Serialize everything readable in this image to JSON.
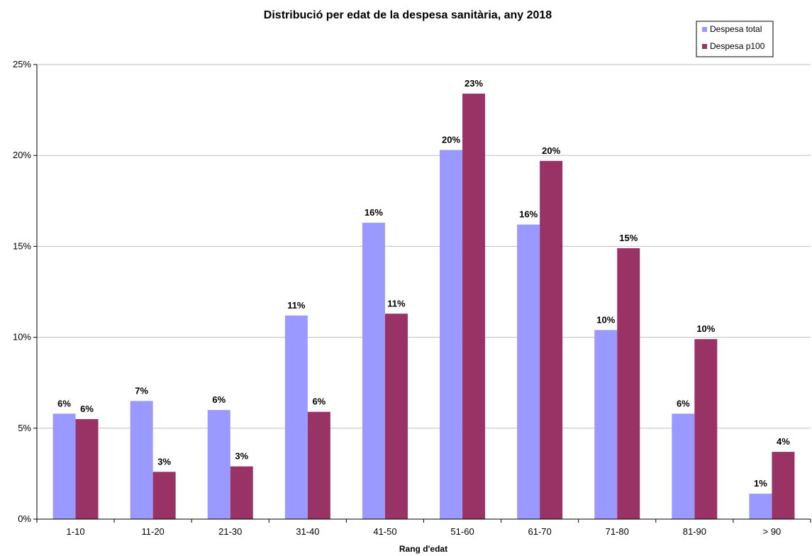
{
  "chart_data": {
    "type": "bar",
    "title": "Distribució per edat de la despesa sanitària, any 2018",
    "xlabel": "Rang d'edat",
    "ylabel": "",
    "ylim": [
      0,
      25
    ],
    "yticks": [
      0,
      5,
      10,
      15,
      20,
      25
    ],
    "ytick_labels": [
      "0%",
      "5%",
      "10%",
      "15%",
      "20%",
      "25%"
    ],
    "categories": [
      "1-10",
      "11-20",
      "21-30",
      "31-40",
      "41-50",
      "51-60",
      "61-70",
      "71-80",
      "81-90",
      "> 90"
    ],
    "series": [
      {
        "name": "Despesa total",
        "color": "#9999ff",
        "values": [
          5.8,
          6.5,
          6.0,
          11.2,
          16.3,
          20.3,
          16.2,
          10.4,
          5.8,
          1.4
        ],
        "labels": [
          "6%",
          "7%",
          "6%",
          "11%",
          "16%",
          "20%",
          "16%",
          "10%",
          "6%",
          "1%"
        ]
      },
      {
        "name": "Despesa p100",
        "color": "#993366",
        "values": [
          5.5,
          2.6,
          2.9,
          5.9,
          11.3,
          23.4,
          19.7,
          14.9,
          9.9,
          3.7
        ],
        "labels": [
          "6%",
          "3%",
          "3%",
          "6%",
          "11%",
          "23%",
          "20%",
          "15%",
          "10%",
          "4%"
        ]
      }
    ],
    "grid": "horizontal",
    "legend_position": "top-right"
  }
}
